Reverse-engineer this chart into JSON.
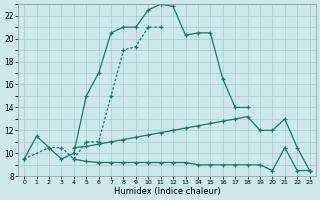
{
  "xlabel": "Humidex (Indice chaleur)",
  "bg_color": "#cce8e8",
  "line_color": "#1a7a6e",
  "grid_color": "#aacccc",
  "xlim": [
    -0.5,
    23.5
  ],
  "ylim": [
    8,
    23
  ],
  "yticks": [
    8,
    10,
    12,
    14,
    16,
    18,
    20,
    22
  ],
  "xticks": [
    0,
    1,
    2,
    3,
    4,
    5,
    6,
    7,
    8,
    9,
    10,
    11,
    12,
    13,
    14,
    15,
    16,
    17,
    18,
    19,
    20,
    21,
    22,
    23
  ],
  "line1_x": [
    0,
    1,
    2,
    3,
    4,
    5,
    6,
    7,
    8,
    9,
    10,
    11,
    12,
    13,
    14,
    15,
    16,
    17,
    18
  ],
  "line1_y": [
    9.5,
    11.5,
    10.5,
    9.5,
    10.0,
    15.0,
    17.0,
    20.5,
    21.0,
    21.0,
    22.5,
    23.0,
    22.8,
    20.3,
    20.5,
    20.5,
    16.5,
    14.0,
    14.0
  ],
  "line2_x": [
    0,
    2,
    3,
    4,
    5,
    6,
    7,
    8,
    9,
    10,
    11
  ],
  "line2_y": [
    9.5,
    10.5,
    10.5,
    9.5,
    11.0,
    11.0,
    15.0,
    19.0,
    19.3,
    21.0,
    21.0
  ],
  "line3_x": [
    4,
    5,
    6,
    7,
    8,
    9,
    10,
    11,
    12,
    13,
    14,
    15,
    16,
    17,
    18,
    19,
    20,
    21,
    22,
    23
  ],
  "line3_y": [
    9.5,
    9.3,
    9.2,
    9.2,
    9.2,
    9.2,
    9.2,
    9.2,
    9.2,
    9.2,
    9.0,
    9.0,
    9.0,
    9.0,
    9.0,
    9.0,
    8.5,
    10.5,
    8.5,
    8.5
  ],
  "line4_x": [
    4,
    5,
    6,
    7,
    8,
    9,
    10,
    11,
    12,
    13,
    14,
    15,
    16,
    17,
    18,
    19,
    20,
    21,
    22,
    23
  ],
  "line4_y": [
    10.5,
    10.6,
    10.8,
    11.0,
    11.2,
    11.4,
    11.6,
    11.8,
    12.0,
    12.2,
    12.4,
    12.6,
    12.8,
    13.0,
    13.2,
    12.0,
    12.0,
    13.0,
    10.5,
    8.5
  ]
}
